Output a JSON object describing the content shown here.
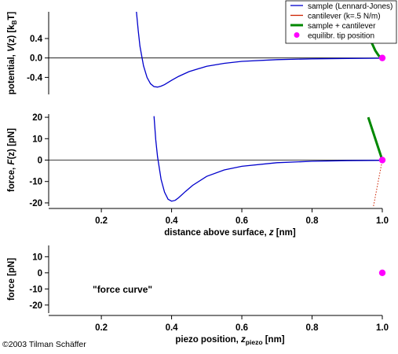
{
  "chart_data": [
    {
      "type": "line",
      "ylabel": "potential, V(z)  [kBT]",
      "ylabel_parts": [
        "potential, ",
        "V",
        "(z)  [k",
        "B",
        "T]"
      ],
      "xlim": [
        0.05,
        1.0
      ],
      "ylim": [
        -0.75,
        0.95
      ],
      "yticks": [
        "0.4",
        "0.0",
        "-0.4"
      ],
      "ytick_values": [
        0.4,
        0.0,
        -0.4
      ],
      "series": [
        {
          "name": "sample (Lennard-Jones)",
          "color": "#0000cc",
          "x": [
            0.3,
            0.305,
            0.31,
            0.32,
            0.33,
            0.34,
            0.35,
            0.36,
            0.37,
            0.38,
            0.4,
            0.42,
            0.45,
            0.5,
            0.55,
            0.6,
            0.7,
            0.8,
            0.9,
            1.0
          ],
          "y": [
            0.95,
            0.56,
            0.24,
            -0.16,
            -0.4,
            -0.53,
            -0.59,
            -0.6,
            -0.58,
            -0.55,
            -0.46,
            -0.38,
            -0.28,
            -0.17,
            -0.11,
            -0.07,
            -0.035,
            -0.018,
            -0.01,
            -0.006
          ]
        },
        {
          "name": "cantilever (k=.5 N/m)",
          "color": "#cc2200",
          "x": [
            0.945,
            0.96,
            0.97,
            0.98,
            0.99,
            1.0
          ],
          "y": [
            0.95,
            0.52,
            0.32,
            0.16,
            0.05,
            0.0
          ]
        },
        {
          "name": "sample + cantilever",
          "color": "#008800",
          "x": [
            0.945,
            0.96,
            0.97,
            0.98,
            0.99,
            1.0
          ],
          "y": [
            0.94,
            0.51,
            0.31,
            0.15,
            0.045,
            -0.006
          ]
        }
      ],
      "points": [
        {
          "name": "equilibr. tip position",
          "x": 1.0,
          "y": 0.0,
          "color": "#ff00ff"
        }
      ]
    },
    {
      "type": "line",
      "ylabel": "force, F(z)  [pN]",
      "ylabel_parts": [
        "force, ",
        "F",
        "(z)  [pN]"
      ],
      "xlabel": "distance above surface, z  [nm]",
      "xlabel_parts": [
        "distance above surface, ",
        "z",
        "  [nm]"
      ],
      "xlim": [
        0.05,
        1.0
      ],
      "ylim": [
        -21.5,
        21.5
      ],
      "xticks": [
        "0.2",
        "0.4",
        "0.6",
        "0.8",
        "1.0"
      ],
      "xtick_values": [
        0.2,
        0.4,
        0.6,
        0.8,
        1.0
      ],
      "yticks": [
        "20",
        "10",
        "0",
        "-10",
        "-20"
      ],
      "ytick_values": [
        20,
        10,
        0,
        -10,
        -20
      ],
      "series": [
        {
          "name": "sample (Lennard-Jones)",
          "color": "#0000cc",
          "x": [
            0.35,
            0.355,
            0.36,
            0.37,
            0.38,
            0.39,
            0.4,
            0.41,
            0.42,
            0.44,
            0.46,
            0.5,
            0.55,
            0.6,
            0.7,
            0.8,
            0.9,
            1.0
          ],
          "y": [
            20.5,
            9.5,
            1.5,
            -9.0,
            -15.0,
            -18.3,
            -19.2,
            -18.8,
            -17.6,
            -14.6,
            -11.8,
            -7.6,
            -4.6,
            -2.9,
            -1.2,
            -0.55,
            -0.25,
            -0.1
          ]
        },
        {
          "name": "cantilever (k=.5 N/m)",
          "color": "#cc2200",
          "x": [
            0.96,
            1.0
          ],
          "y": [
            20.0,
            0.0
          ]
        },
        {
          "name": "sample + cantilever",
          "color": "#008800",
          "x": [
            0.96,
            1.0
          ],
          "y": [
            20.0,
            0.0
          ]
        }
      ],
      "dotted": {
        "x": [
          0.975,
          1.0
        ],
        "y": [
          -21.5,
          0.0
        ],
        "color": "#cc2200"
      },
      "points": [
        {
          "name": "equilibr. tip position",
          "x": 1.0,
          "y": 0.0,
          "color": "#ff00ff"
        }
      ]
    },
    {
      "type": "scatter",
      "ylabel": "force [pN]",
      "xlabel": "piezo position, zpiezo  [nm]",
      "xlabel_parts": [
        "piezo position, ",
        "z",
        "piezo",
        "  [nm]"
      ],
      "xlim": [
        0.05,
        1.0
      ],
      "ylim": [
        -25,
        17
      ],
      "xticks": [
        "0.2",
        "0.4",
        "0.6",
        "0.8",
        "1.0"
      ],
      "xtick_values": [
        0.2,
        0.4,
        0.6,
        0.8,
        1.0
      ],
      "yticks": [
        "10",
        "0",
        "-10",
        "-20"
      ],
      "ytick_values": [
        10,
        0,
        -10,
        -20
      ],
      "annotation": "\"force curve\"",
      "points": [
        {
          "name": "equilibr. tip position",
          "x": 1.0,
          "y": 0.0,
          "color": "#ff00ff"
        }
      ]
    }
  ],
  "legend": {
    "position": "top-right",
    "items": [
      {
        "label": "sample (Lennard-Jones)",
        "color": "#0000cc",
        "kind": "line"
      },
      {
        "label": "cantilever (k=.5 N/m)",
        "color": "#cc2200",
        "kind": "line"
      },
      {
        "label": "sample + cantilever",
        "color": "#008800",
        "kind": "line"
      },
      {
        "label": "equilibr. tip position",
        "color": "#ff00ff",
        "kind": "dot"
      }
    ]
  },
  "credit": "©2003 Tilman Schäffer"
}
